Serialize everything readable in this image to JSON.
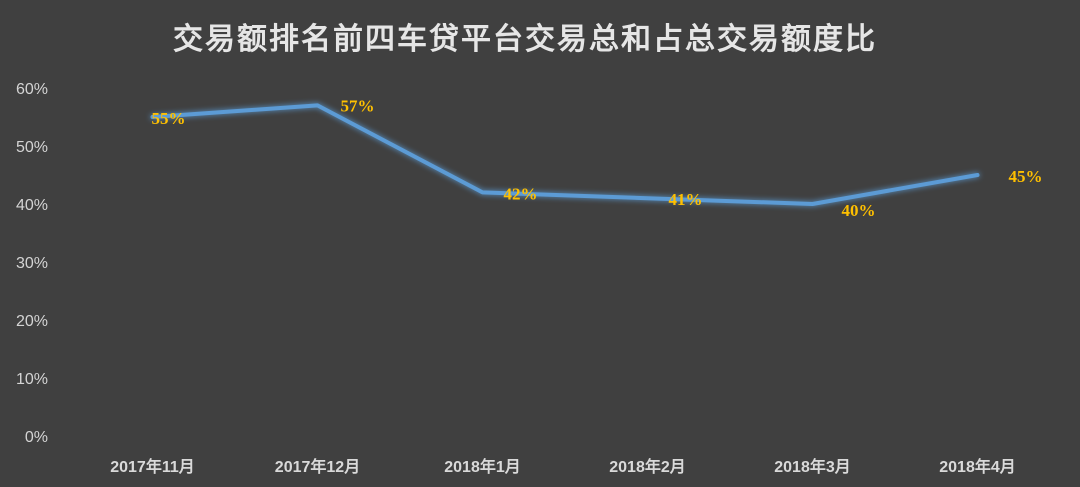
{
  "chart_data": {
    "type": "line",
    "title": "交易额排名前四车贷平台交易总和占总交易额度比",
    "categories": [
      "2017年11月",
      "2017年12月",
      "2018年1月",
      "2018年2月",
      "2018年3月",
      "2018年4月"
    ],
    "series": [
      {
        "values": [
          55,
          57,
          42,
          41,
          40,
          45
        ],
        "labels": [
          "55%",
          "57%",
          "42%",
          "41%",
          "40%",
          "45%"
        ]
      }
    ],
    "ylim": [
      0,
      60
    ],
    "yticks": [
      "0%",
      "10%",
      "20%",
      "30%",
      "40%",
      "50%",
      "60%"
    ],
    "grid": false,
    "legend": "none",
    "colors": {
      "background": "#404040",
      "line": "#5b9bd5",
      "data_label": "#ffc000",
      "text": "#d4d4d4"
    }
  }
}
